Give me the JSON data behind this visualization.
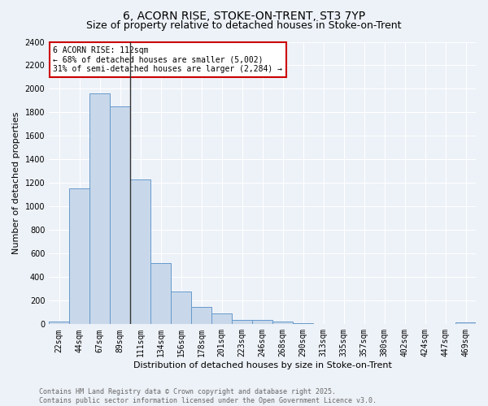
{
  "title1": "6, ACORN RISE, STOKE-ON-TRENT, ST3 7YP",
  "title2": "Size of property relative to detached houses in Stoke-on-Trent",
  "xlabel": "Distribution of detached houses by size in Stoke-on-Trent",
  "ylabel": "Number of detached properties",
  "categories": [
    "22sqm",
    "44sqm",
    "67sqm",
    "89sqm",
    "111sqm",
    "134sqm",
    "156sqm",
    "178sqm",
    "201sqm",
    "223sqm",
    "246sqm",
    "268sqm",
    "290sqm",
    "313sqm",
    "335sqm",
    "357sqm",
    "380sqm",
    "402sqm",
    "424sqm",
    "447sqm",
    "469sqm"
  ],
  "values": [
    25,
    1155,
    1960,
    1850,
    1230,
    520,
    275,
    150,
    95,
    40,
    40,
    20,
    10,
    5,
    3,
    2,
    2,
    1,
    1,
    1,
    15
  ],
  "bar_color": "#c8d8ea",
  "bar_edge_color": "#6699cc",
  "property_line_index": 4,
  "annotation_text": "6 ACORN RISE: 112sqm\n← 68% of detached houses are smaller (5,002)\n31% of semi-detached houses are larger (2,284) →",
  "annotation_box_color": "#ffffff",
  "annotation_box_edge": "#cc0000",
  "vline_color": "#333333",
  "ylim": [
    0,
    2400
  ],
  "yticks": [
    0,
    200,
    400,
    600,
    800,
    1000,
    1200,
    1400,
    1600,
    1800,
    2000,
    2200,
    2400
  ],
  "bg_color": "#edf2f8",
  "grid_color": "#ffffff",
  "footer_line1": "Contains HM Land Registry data © Crown copyright and database right 2025.",
  "footer_line2": "Contains public sector information licensed under the Open Government Licence v3.0.",
  "title_fontsize": 10,
  "subtitle_fontsize": 9,
  "tick_fontsize": 7,
  "ylabel_fontsize": 8,
  "xlabel_fontsize": 8,
  "annotation_fontsize": 7,
  "footer_fontsize": 6
}
